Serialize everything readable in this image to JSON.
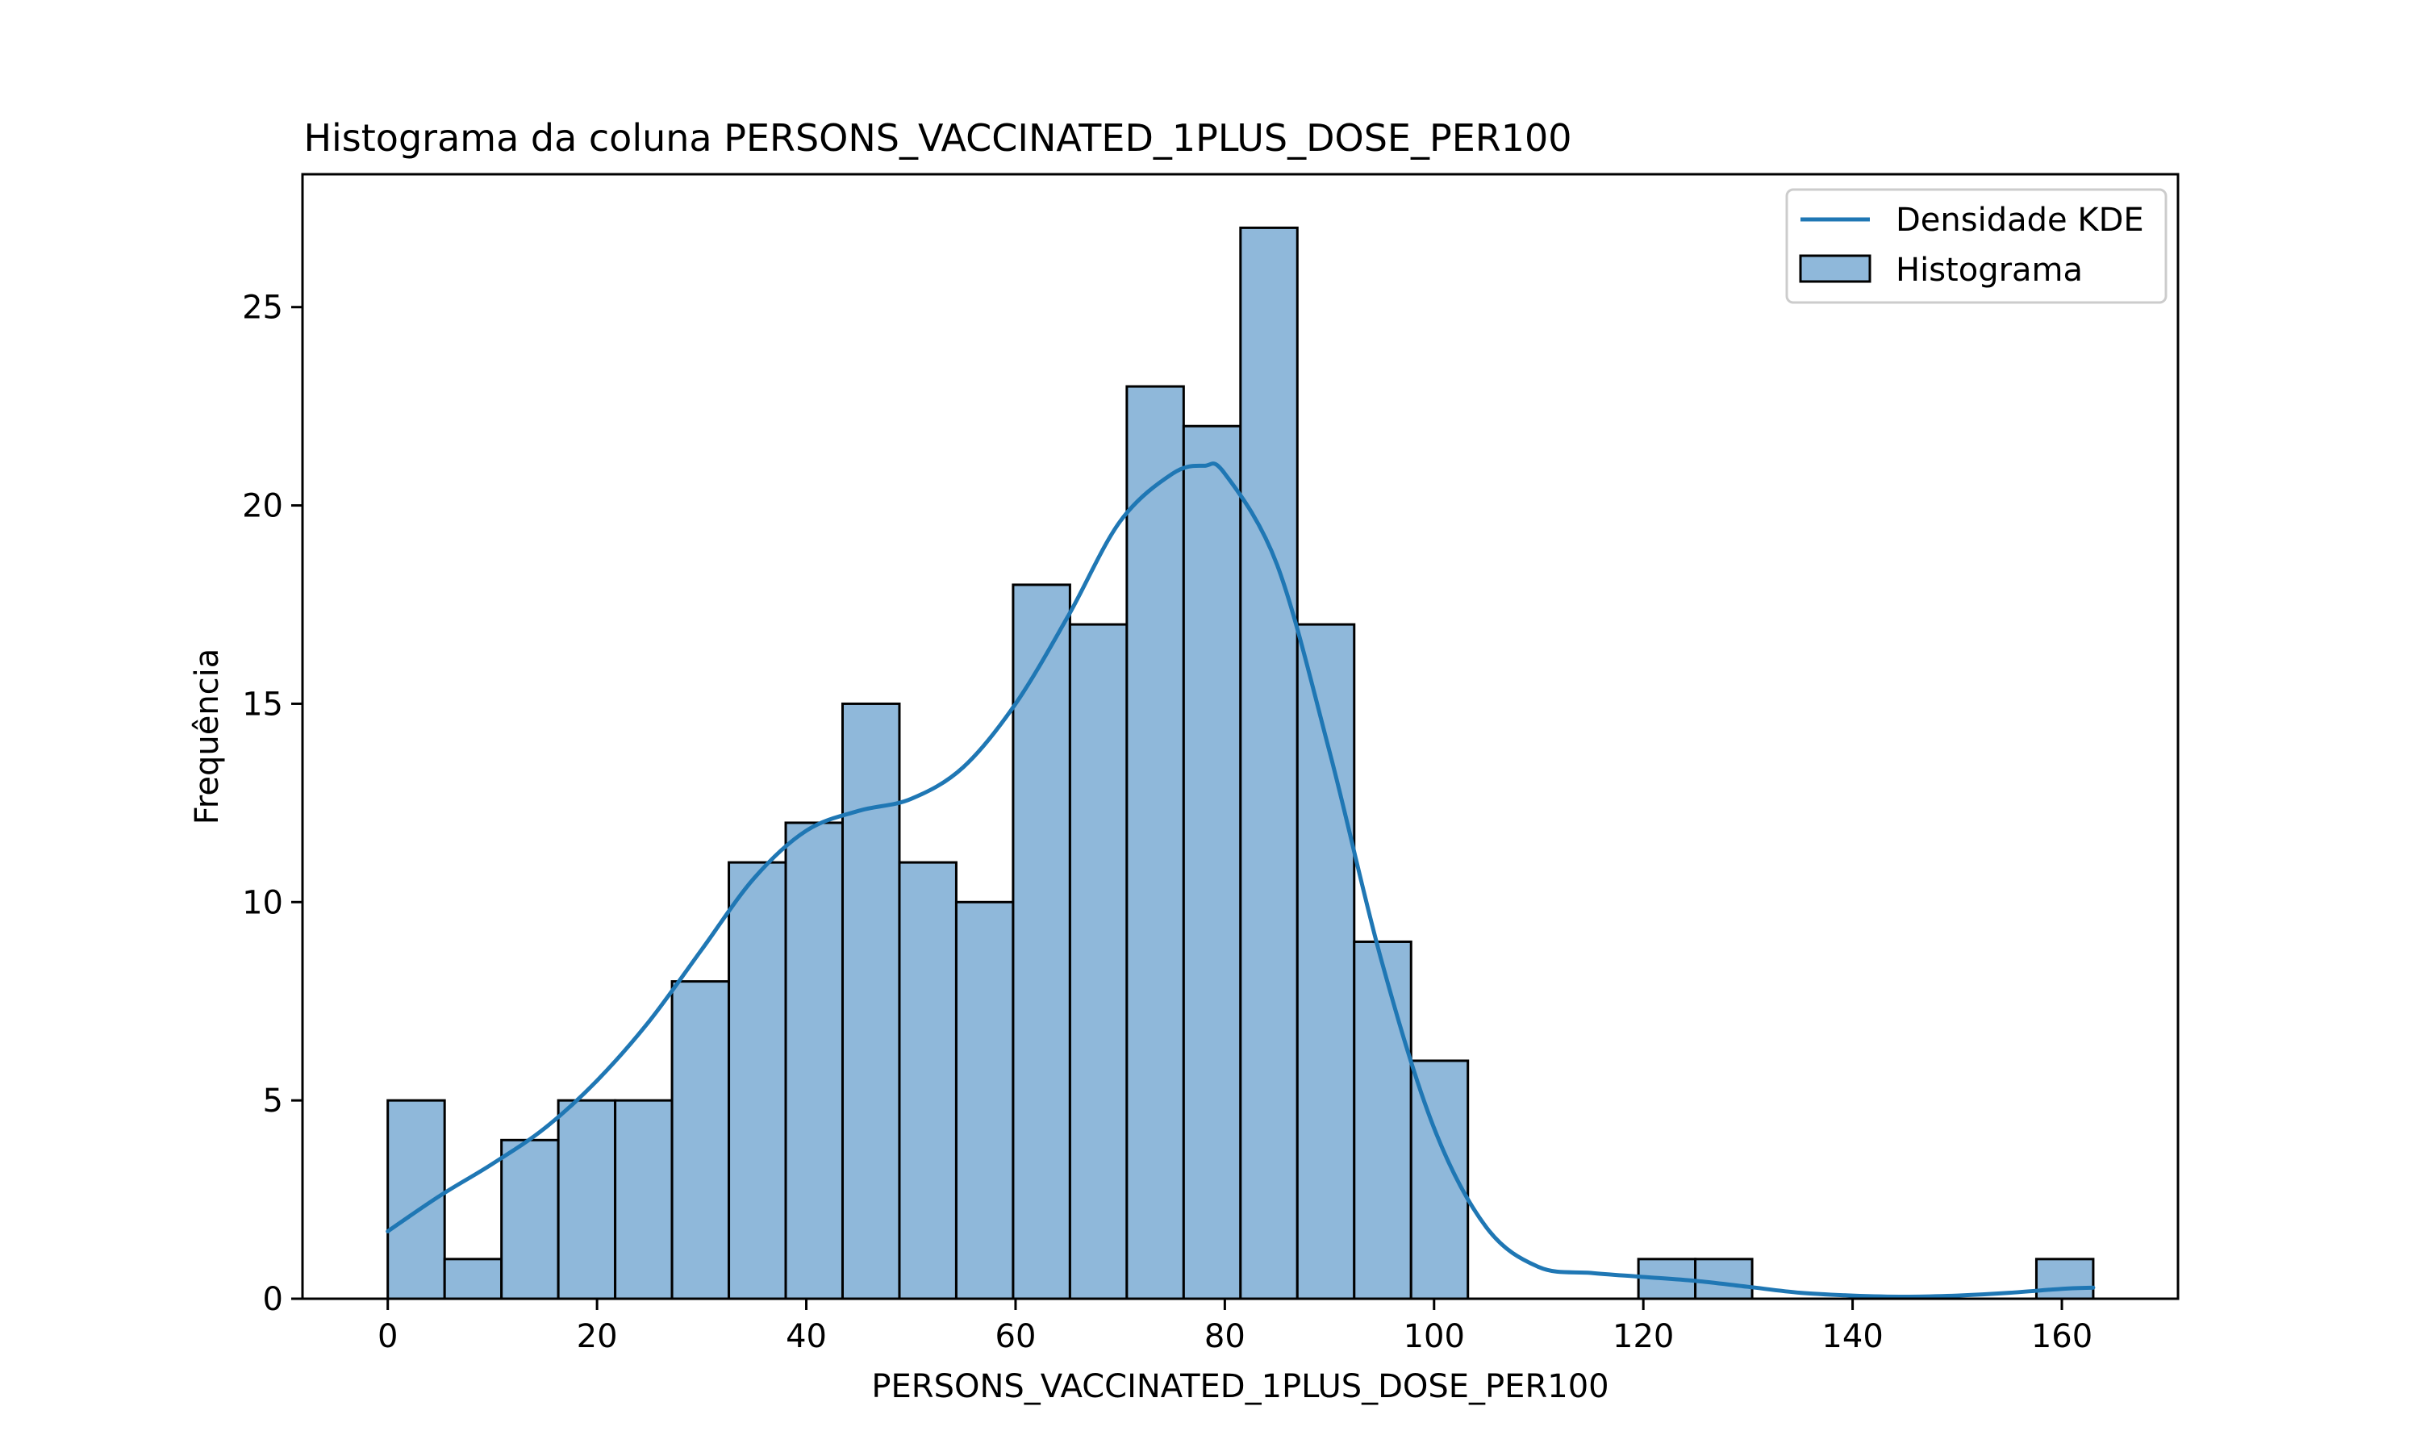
{
  "chart_data": {
    "type": "bar",
    "title": "Histograma da coluna PERSONS_VACCINATED_1PLUS_DOSE_PER100",
    "xlabel": "PERSONS_VACCINATED_1PLUS_DOSE_PER100",
    "ylabel": "Frequência",
    "xlim": [
      -8.15,
      171.1
    ],
    "ylim": [
      0,
      28.35
    ],
    "xticks": [
      0,
      20,
      40,
      60,
      80,
      100,
      120,
      140,
      160
    ],
    "xtick_labels": [
      "0",
      "20",
      "40",
      "60",
      "80",
      "100",
      "120",
      "140",
      "160"
    ],
    "yticks": [
      0,
      5,
      10,
      15,
      20,
      25
    ],
    "ytick_labels": [
      "0",
      "5",
      "10",
      "15",
      "20",
      "25"
    ],
    "bins": {
      "start": 0,
      "width": 5.4333,
      "counts": [
        5,
        1,
        4,
        5,
        5,
        8,
        11,
        12,
        15,
        11,
        10,
        18,
        17,
        23,
        22,
        27,
        17,
        9,
        6,
        0,
        0,
        0,
        1,
        1,
        0,
        0,
        0,
        0,
        0,
        1
      ]
    },
    "kde": {
      "name": "Densidade KDE",
      "x": [
        0,
        5,
        10,
        15,
        20,
        25,
        30,
        35,
        40,
        45,
        50,
        55,
        60,
        65,
        70,
        75,
        78,
        80,
        85,
        90,
        95,
        100,
        105,
        110,
        115,
        120,
        125,
        130,
        135,
        140,
        145,
        150,
        155,
        160,
        163
      ],
      "y": [
        1.7,
        2.6,
        3.4,
        4.3,
        5.5,
        7.0,
        8.8,
        10.6,
        11.8,
        12.3,
        12.6,
        13.4,
        15.0,
        17.2,
        19.6,
        20.8,
        21.0,
        20.8,
        18.5,
        13.8,
        8.5,
        4.3,
        1.8,
        0.8,
        0.65,
        0.55,
        0.45,
        0.3,
        0.15,
        0.08,
        0.05,
        0.08,
        0.15,
        0.25,
        0.28
      ]
    },
    "legend": {
      "placement": "top-right",
      "entries": [
        "Densidade KDE",
        "Histograma"
      ]
    },
    "grid": false,
    "colors": {
      "bar_fill": "#8fb8da",
      "bar_edge": "#000000",
      "kde_line": "#1f77b4"
    }
  }
}
